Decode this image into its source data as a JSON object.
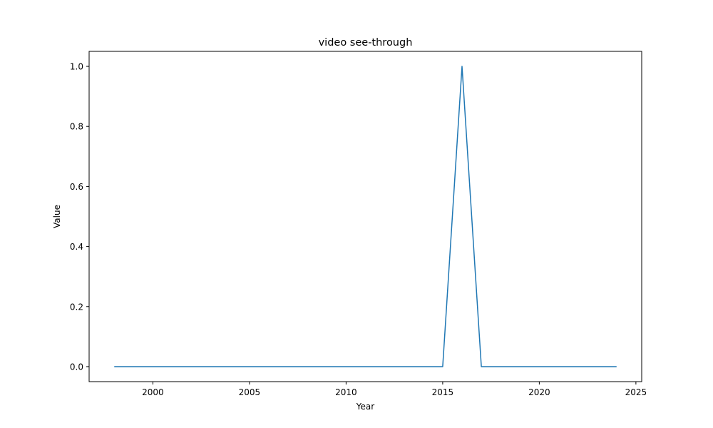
{
  "chart_data": {
    "type": "line",
    "title": "video see-through",
    "xlabel": "Year",
    "ylabel": "Value",
    "xlim": [
      1996.7,
      2025.3
    ],
    "ylim": [
      -0.05,
      1.05
    ],
    "x_ticks": [
      2000,
      2005,
      2010,
      2015,
      2020,
      2025
    ],
    "y_ticks": [
      0.0,
      0.2,
      0.4,
      0.6,
      0.8,
      1.0
    ],
    "x_tick_labels": [
      "2000",
      "2005",
      "2010",
      "2015",
      "2020",
      "2025"
    ],
    "y_tick_labels": [
      "0.0",
      "0.2",
      "0.4",
      "0.6",
      "0.8",
      "1.0"
    ],
    "grid": false,
    "series": [
      {
        "color": "#1f77b4",
        "x": [
          1998,
          1999,
          2000,
          2001,
          2002,
          2003,
          2004,
          2005,
          2006,
          2007,
          2008,
          2009,
          2010,
          2011,
          2012,
          2013,
          2014,
          2015,
          2016,
          2017,
          2018,
          2019,
          2020,
          2021,
          2022,
          2023,
          2024
        ],
        "y": [
          0,
          0,
          0,
          0,
          0,
          0,
          0,
          0,
          0,
          0,
          0,
          0,
          0,
          0,
          0,
          0,
          0,
          0,
          1,
          0,
          0,
          0,
          0,
          0,
          0,
          0,
          0
        ]
      }
    ]
  }
}
